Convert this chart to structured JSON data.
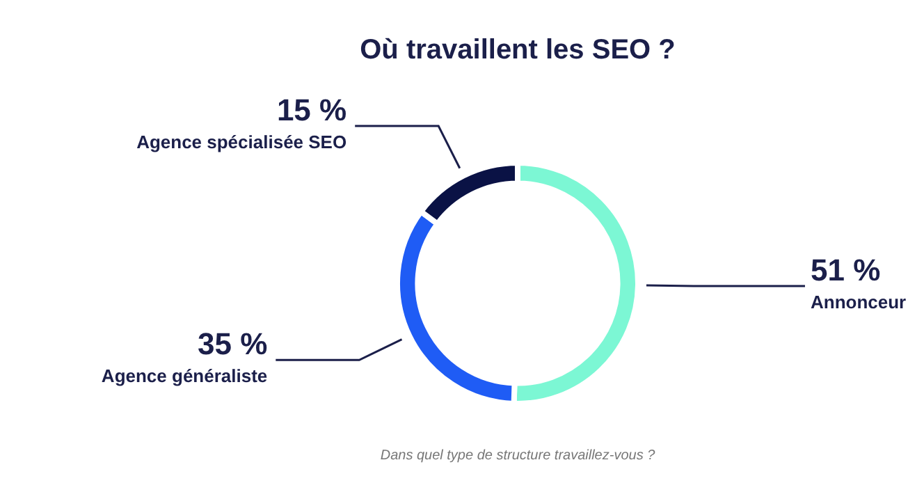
{
  "chart_data": {
    "type": "donut",
    "title": "Où travaillent les SEO ?",
    "categories": [
      "Annonceur",
      "Agence généraliste",
      "Agence spécialisée SEO"
    ],
    "values": [
      51,
      35,
      15
    ],
    "value_labels": [
      "51 %",
      "35 %",
      "15 %"
    ],
    "colors": [
      "#7cf7d4",
      "#1f5cf5",
      "#0a1245"
    ],
    "legend": false,
    "annotations": [
      "Dans quel type de structure travaillez-vous ?"
    ]
  }
}
